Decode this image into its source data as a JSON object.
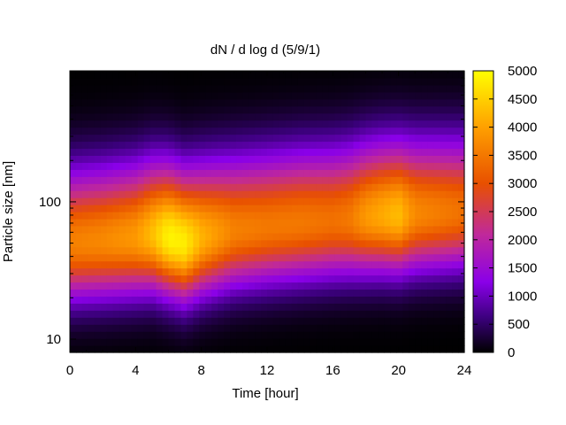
{
  "chart_data": {
    "type": "heatmap",
    "title": "dN / d log d (5/9/1)",
    "xlabel": "Time [hour]",
    "ylabel": "Particle size [nm]",
    "xlim": [
      0,
      24
    ],
    "ylim": [
      8,
      900
    ],
    "y_scale": "log",
    "x_ticks": [
      "0",
      "4",
      "8",
      "12",
      "16",
      "20",
      "24"
    ],
    "x_tick_values": [
      0,
      4,
      8,
      12,
      16,
      20,
      24
    ],
    "y_ticks": [
      "10",
      "100"
    ],
    "y_tick_values": [
      10,
      100
    ],
    "colorbar": {
      "range": [
        0,
        5000
      ],
      "ticks": [
        "0",
        "500",
        "1000",
        "1500",
        "2000",
        "2500",
        "3000",
        "3500",
        "4000",
        "4500",
        "5000"
      ],
      "tick_values": [
        0,
        500,
        1000,
        1500,
        2000,
        2500,
        3000,
        3500,
        4000,
        4500,
        5000
      ],
      "colors": [
        "#000000",
        "#3a007a",
        "#8a00e8",
        "#c0299a",
        "#e85000",
        "#ffa000",
        "#ffff00"
      ]
    },
    "grid": false,
    "peak_diameter_nm": {
      "hours": [
        0,
        2,
        4,
        5,
        6,
        7,
        8,
        10,
        12,
        14,
        16,
        17,
        18,
        19,
        20,
        21,
        22,
        23,
        24
      ],
      "values": [
        50,
        52,
        55,
        58,
        55,
        50,
        55,
        62,
        66,
        70,
        73,
        75,
        78,
        80,
        80,
        82,
        83,
        84,
        85
      ]
    },
    "peak_concentration": {
      "hours": [
        0,
        2,
        4,
        5,
        6,
        7,
        8,
        10,
        12,
        14,
        16,
        17,
        18,
        19,
        20,
        21,
        22,
        23,
        24
      ],
      "values": [
        3600,
        3700,
        3900,
        4300,
        4900,
        4800,
        4200,
        3600,
        3500,
        3500,
        3400,
        3500,
        3900,
        4100,
        4300,
        3700,
        3600,
        3500,
        3400
      ]
    }
  }
}
